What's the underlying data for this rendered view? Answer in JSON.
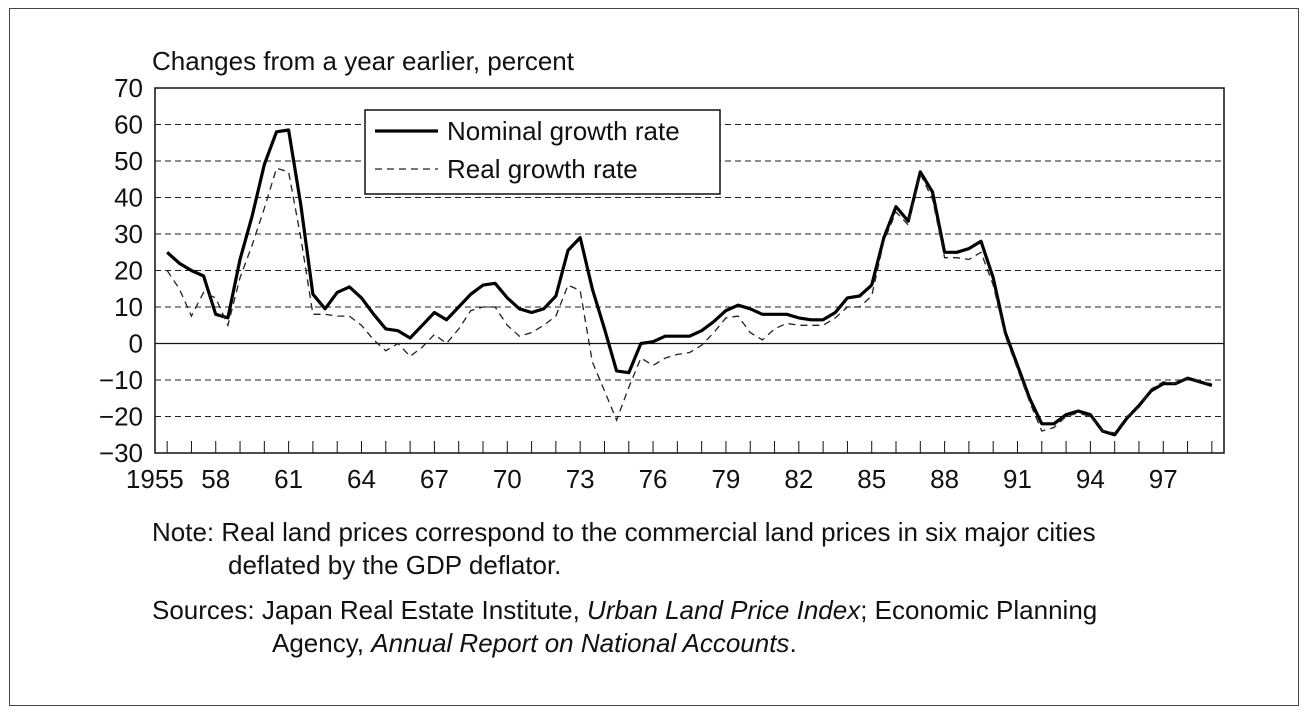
{
  "chart_data": {
    "type": "line",
    "ylabel": "Changes from a year earlier, percent",
    "ylim": [
      -30,
      70
    ],
    "yticks": [
      70,
      60,
      50,
      40,
      30,
      20,
      10,
      0,
      -10,
      -20,
      -30
    ],
    "ytick_labels": [
      "70",
      "60",
      "50",
      "40",
      "30",
      "20",
      "10",
      "0",
      "−10",
      "−20",
      "−30"
    ],
    "xlim": [
      1955.5,
      1999.5
    ],
    "xticks": [
      1955,
      1958,
      1961,
      1964,
      1967,
      1970,
      1973,
      1976,
      1979,
      1982,
      1985,
      1988,
      1991,
      1994,
      1997
    ],
    "xtick_labels": [
      "1955",
      "58",
      "61",
      "64",
      "67",
      "70",
      "73",
      "76",
      "79",
      "82",
      "85",
      "88",
      "91",
      "94",
      "97"
    ],
    "grid": "horizontal dashed",
    "legend_position": "top-center",
    "series": [
      {
        "name": "Nominal growth rate",
        "style": "solid",
        "x": [
          1956.0,
          1956.5,
          1957.0,
          1957.5,
          1958.0,
          1958.5,
          1959.0,
          1959.5,
          1960.0,
          1960.5,
          1961.0,
          1961.5,
          1962.0,
          1962.5,
          1963.0,
          1963.5,
          1964.0,
          1964.5,
          1965.0,
          1965.5,
          1966.0,
          1966.5,
          1967.0,
          1967.5,
          1968.0,
          1968.5,
          1969.0,
          1969.5,
          1970.0,
          1970.5,
          1971.0,
          1971.5,
          1972.0,
          1972.5,
          1973.0,
          1973.5,
          1974.0,
          1974.5,
          1975.0,
          1975.5,
          1976.0,
          1976.5,
          1977.0,
          1977.5,
          1978.0,
          1978.5,
          1979.0,
          1979.5,
          1980.0,
          1980.5,
          1981.0,
          1981.5,
          1982.0,
          1982.5,
          1983.0,
          1983.5,
          1984.0,
          1984.5,
          1985.0,
          1985.5,
          1986.0,
          1986.5,
          1987.0,
          1987.5,
          1988.0,
          1988.5,
          1989.0,
          1989.5,
          1990.0,
          1990.5,
          1991.0,
          1991.5,
          1992.0,
          1992.5,
          1993.0,
          1993.5,
          1994.0,
          1994.5,
          1995.0,
          1995.5,
          1996.0,
          1996.5,
          1997.0,
          1997.5,
          1998.0,
          1998.5,
          1999.0
        ],
        "values": [
          25,
          22,
          20,
          18.5,
          8,
          7,
          23,
          35,
          49,
          58,
          58.5,
          38,
          13.5,
          9.5,
          14,
          15.5,
          12.5,
          8,
          4,
          3.5,
          1.5,
          5,
          8.5,
          6.5,
          10,
          13.5,
          16,
          16.5,
          12.5,
          9.5,
          8.5,
          9.5,
          13,
          25.5,
          29,
          15,
          4,
          -7.5,
          -8,
          0,
          0.5,
          2,
          2,
          2,
          3.5,
          6,
          9,
          10.5,
          9.5,
          8,
          8,
          8,
          7,
          6.5,
          6.5,
          8.5,
          12.5,
          13,
          16,
          29,
          37.5,
          33.5,
          47,
          41.5,
          25,
          25,
          26,
          28,
          18,
          3,
          -6,
          -15,
          -22,
          -22,
          -19.5,
          -18.5,
          -19.5,
          -24,
          -25,
          -20.5,
          -17,
          -13,
          -11,
          -11,
          -9.5,
          -10.5,
          -11.5
        ]
      },
      {
        "name": "Real growth rate",
        "style": "dashed",
        "x": [
          1956.0,
          1956.5,
          1957.0,
          1957.5,
          1958.0,
          1958.5,
          1959.0,
          1959.5,
          1960.0,
          1960.5,
          1961.0,
          1961.5,
          1962.0,
          1962.5,
          1963.0,
          1963.5,
          1964.0,
          1964.5,
          1965.0,
          1965.5,
          1966.0,
          1966.5,
          1967.0,
          1967.5,
          1968.0,
          1968.5,
          1969.0,
          1969.5,
          1970.0,
          1970.5,
          1971.0,
          1971.5,
          1972.0,
          1972.5,
          1973.0,
          1973.5,
          1974.0,
          1974.5,
          1975.0,
          1975.5,
          1976.0,
          1976.5,
          1977.0,
          1977.5,
          1978.0,
          1978.5,
          1979.0,
          1979.5,
          1980.0,
          1980.5,
          1981.0,
          1981.5,
          1982.0,
          1982.5,
          1983.0,
          1983.5,
          1984.0,
          1984.5,
          1985.0,
          1985.5,
          1986.0,
          1986.5,
          1987.0,
          1987.5,
          1988.0,
          1988.5,
          1989.0,
          1989.5,
          1990.0,
          1990.5,
          1991.0,
          1991.5,
          1992.0,
          1992.5,
          1993.0,
          1993.5,
          1994.0,
          1994.5,
          1995.0,
          1995.5,
          1996.0,
          1996.5,
          1997.0,
          1997.5,
          1998.0,
          1998.5,
          1999.0
        ],
        "values": [
          20,
          15,
          7.5,
          14,
          12.5,
          5,
          18,
          27,
          37,
          48,
          47,
          29,
          8,
          8,
          7.5,
          7.5,
          5,
          1,
          -2,
          0,
          -3.5,
          -1,
          2.5,
          0,
          4,
          9,
          10,
          10,
          5,
          2,
          3,
          5,
          7.5,
          16,
          14.5,
          -5,
          -13,
          -21,
          -12,
          -4,
          -6,
          -4,
          -3,
          -2.5,
          -0.5,
          3,
          7,
          7.5,
          3,
          1,
          4,
          5.5,
          5,
          5,
          5,
          7,
          10,
          10,
          13,
          28,
          36,
          32.5,
          46.5,
          39.5,
          23.5,
          23.5,
          23,
          25,
          16,
          2,
          -7,
          -16,
          -24,
          -23,
          -20,
          -19,
          -20,
          -24,
          -24.5,
          -20,
          -17.5,
          -12.5,
          -10.5,
          -11,
          -9.5,
          -10.5,
          -11
        ]
      }
    ]
  },
  "note": {
    "label": "Note:",
    "text_line1": "Real land prices correspond to the commercial land prices in six major cities",
    "text_line2": "deflated by the GDP deflator."
  },
  "sources": {
    "label": "Sources:",
    "part1": "Japan Real Estate Institute,",
    "title1": "Urban Land Price Index",
    "part2": "; Economic Planning",
    "part3": "Agency,",
    "title2": "Annual Report on National Accounts",
    "part4": "."
  }
}
